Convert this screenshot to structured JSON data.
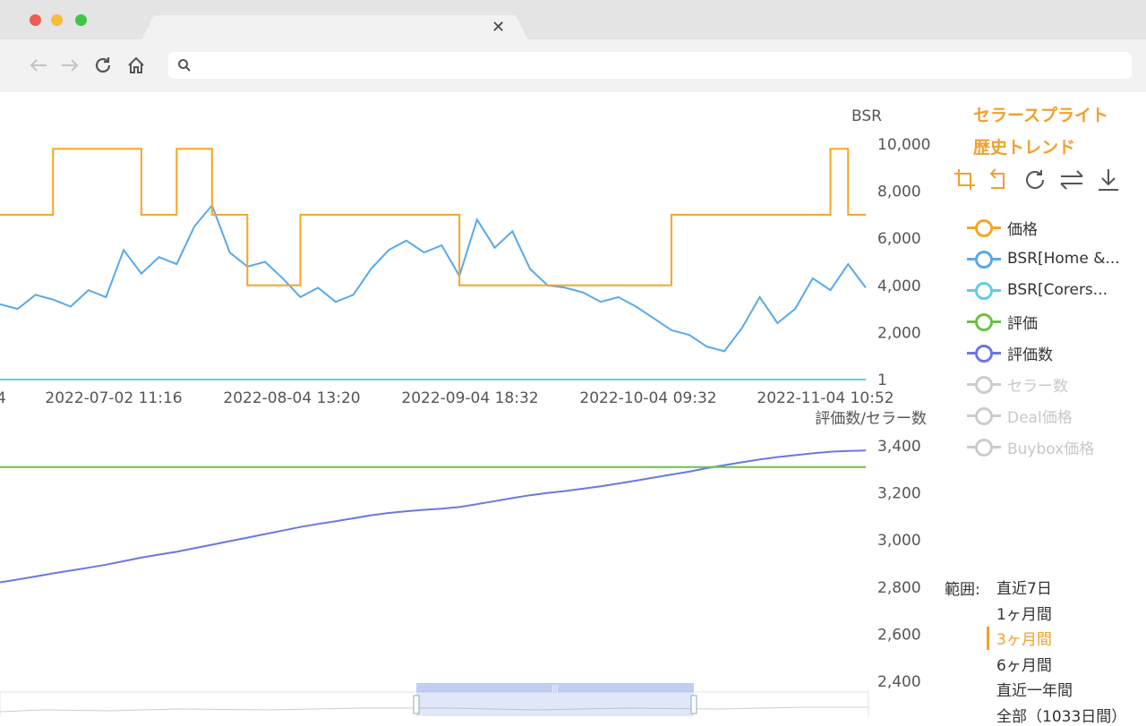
{
  "browser": {
    "tab_close_glyph": "✕",
    "back_icon": "arrow-left",
    "forward_icon": "arrow-right",
    "reload_icon": "reload",
    "home_icon": "home",
    "url_placeholder": "",
    "traffic_lights": [
      "#ee5b53",
      "#f6bd3b",
      "#3dc64a"
    ]
  },
  "panel": {
    "title_line1": "セラースプライト",
    "title_line2": "歴史トレンド",
    "accent": "#f0a12e",
    "tools": [
      "crop-icon",
      "undo-crop-icon",
      "refresh-icon",
      "swap-icon",
      "download-icon"
    ]
  },
  "legend": [
    {
      "label": "価格",
      "color": "#f5a623",
      "active": true
    },
    {
      "label": "BSR[Home &...",
      "color": "#58a9ea",
      "active": true
    },
    {
      "label": "BSR[Corers...",
      "color": "#63cbe8",
      "active": true
    },
    {
      "label": "評価",
      "color": "#6cc04a",
      "active": true
    },
    {
      "label": "評価数",
      "color": "#6a78e0",
      "active": true
    },
    {
      "label": "セラー数",
      "color": "#cccccc",
      "active": false
    },
    {
      "label": "Deal価格",
      "color": "#cccccc",
      "active": false
    },
    {
      "label": "Buybox価格",
      "color": "#cccccc",
      "active": false
    }
  ],
  "range": {
    "label": "範囲:",
    "options": [
      "直近7日",
      "1ヶ月間",
      "3ヶ月間",
      "6ヶ月間",
      "直近一年間",
      "全部（1033日間）"
    ],
    "selected_index": 2
  },
  "chart_data": [
    {
      "type": "line",
      "ylabel": "BSR",
      "y_ticks": [
        "10,000",
        "8,000",
        "6,000",
        "4,000",
        "2,000",
        "1"
      ],
      "x_ticks": [
        "4",
        "2022-07-02 11:16",
        "2022-08-04 13:20",
        "2022-09-04 18:32",
        "2022-10-04 09:32",
        "2022-11-04 10:52"
      ],
      "ylim": [
        0,
        10000
      ],
      "series": [
        {
          "name": "価格",
          "color": "#f5a623",
          "values": [
            7000,
            7000,
            7000,
            9800,
            9800,
            9800,
            9800,
            9800,
            7000,
            7000,
            9800,
            9800,
            7000,
            7000,
            4000,
            4000,
            4000,
            7000,
            7000,
            7000,
            7000,
            7000,
            7000,
            7000,
            7000,
            7000,
            4000,
            4000,
            4000,
            4000,
            4000,
            4000,
            4000,
            4000,
            4000,
            4000,
            4000,
            4000,
            7000,
            7000,
            7000,
            7000,
            7000,
            7000,
            7000,
            7000,
            7000,
            9800,
            7000,
            7000
          ]
        },
        {
          "name": "BSR[Home &...",
          "color": "#58a9ea",
          "values": [
            3200,
            3000,
            3600,
            3400,
            3100,
            3800,
            3500,
            5500,
            4500,
            5200,
            4900,
            6500,
            7400,
            5400,
            4800,
            5000,
            4300,
            3500,
            3900,
            3300,
            3600,
            4700,
            5500,
            5900,
            5400,
            5700,
            4400,
            6800,
            5600,
            6300,
            4700,
            4000,
            3900,
            3700,
            3300,
            3500,
            3100,
            2600,
            2100,
            1900,
            1400,
            1200,
            2200,
            3500,
            2400,
            3000,
            4300,
            3800,
            4900,
            3900
          ]
        },
        {
          "name": "BSR[Corers...",
          "color": "#63cbe8",
          "values": [
            1,
            1,
            1,
            1,
            1,
            1,
            1,
            1,
            1,
            1,
            1,
            1,
            1,
            1,
            1,
            1,
            1,
            1,
            1,
            1,
            1,
            1,
            1,
            1,
            1,
            1,
            1,
            1,
            1,
            1,
            1,
            1,
            1,
            1,
            1,
            1,
            1,
            1,
            1,
            1,
            1,
            1,
            1,
            1,
            1,
            1,
            1,
            1,
            1,
            1
          ]
        }
      ]
    },
    {
      "type": "line",
      "ylabel": "評価数/セラー数",
      "y_ticks": [
        "3,400",
        "3,200",
        "3,000",
        "2,800",
        "2,600",
        "2,400"
      ],
      "ylim": [
        2400,
        3400
      ],
      "series": [
        {
          "name": "評価数",
          "color": "#6a78e0",
          "values": [
            2820,
            2832,
            2845,
            2858,
            2870,
            2882,
            2895,
            2910,
            2925,
            2938,
            2950,
            2965,
            2980,
            2995,
            3010,
            3025,
            3040,
            3055,
            3068,
            3080,
            3092,
            3105,
            3115,
            3122,
            3128,
            3133,
            3140,
            3152,
            3165,
            3178,
            3190,
            3200,
            3208,
            3218,
            3228,
            3240,
            3252,
            3265,
            3278,
            3290,
            3305,
            3318,
            3330,
            3342,
            3352,
            3360,
            3368,
            3375,
            3378,
            3380
          ]
        },
        {
          "name": "評価",
          "color": "#6cc04a",
          "values": [
            3310,
            3310,
            3310,
            3310,
            3310,
            3310,
            3310,
            3310,
            3310,
            3310,
            3310,
            3310,
            3310,
            3310,
            3310,
            3310,
            3310,
            3310,
            3310,
            3310,
            3310,
            3310,
            3310,
            3310,
            3310,
            3310,
            3310,
            3310,
            3310,
            3310,
            3310,
            3310,
            3310,
            3310,
            3310,
            3310,
            3310,
            3310,
            3310,
            3310,
            3310,
            3310,
            3310,
            3310,
            3310,
            3310,
            3310,
            3310,
            3310,
            3310
          ]
        }
      ]
    }
  ]
}
